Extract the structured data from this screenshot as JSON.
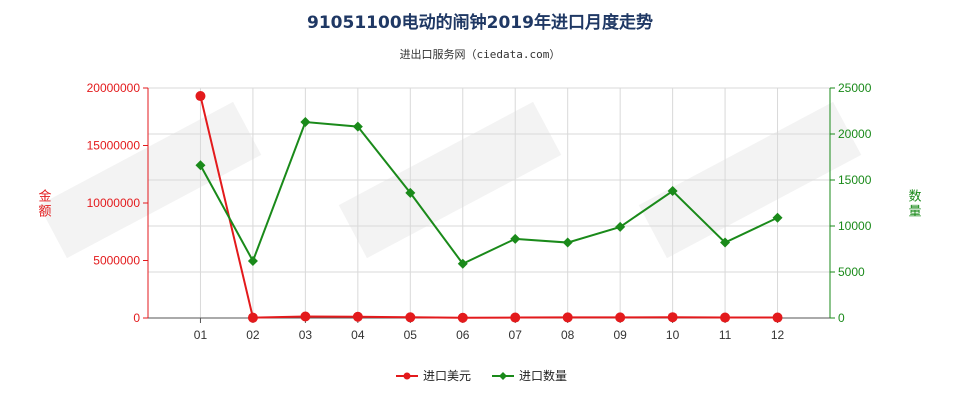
{
  "chart_data": {
    "type": "line",
    "title": "91051100电动的闹钟2019年进口月度走势",
    "subtitle": "进出口服务网（ciedata.com）",
    "categories": [
      "01",
      "02",
      "03",
      "04",
      "05",
      "06",
      "07",
      "08",
      "09",
      "10",
      "11",
      "12"
    ],
    "y_left": {
      "label": "金额",
      "range": [
        0,
        20000000
      ],
      "ticks": [
        "0",
        "5000000",
        "10000000",
        "15000000",
        "20000000"
      ],
      "color": "#e31a1c"
    },
    "y_right": {
      "label": "数量",
      "range": [
        0,
        25000
      ],
      "ticks": [
        "0",
        "5000",
        "10000",
        "15000",
        "20000",
        "25000"
      ],
      "color": "#1a8a1a"
    },
    "series": [
      {
        "name": "进口美元",
        "axis": "left",
        "color": "#e31a1c",
        "marker": "circle",
        "values": [
          19300000,
          30000,
          130000,
          110000,
          60000,
          20000,
          40000,
          50000,
          50000,
          70000,
          40000,
          40000
        ]
      },
      {
        "name": "进口数量",
        "axis": "right",
        "color": "#1a8a1a",
        "marker": "diamond",
        "values": [
          16600,
          6200,
          21300,
          20800,
          13600,
          5900,
          8600,
          8200,
          9900,
          13800,
          8200,
          10900
        ]
      }
    ],
    "grid": true,
    "legend_position": "bottom-center"
  }
}
